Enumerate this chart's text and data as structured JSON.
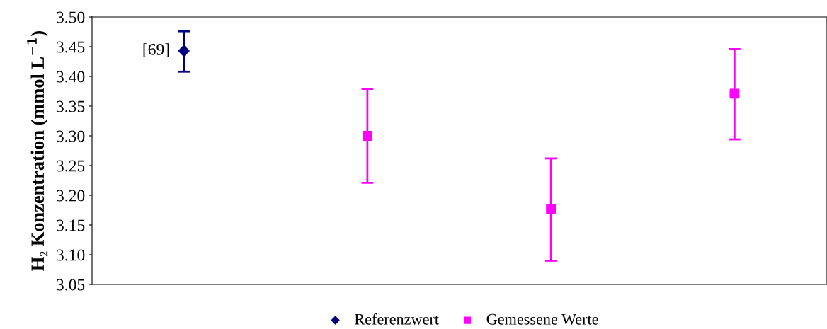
{
  "chart_data": {
    "type": "scatter",
    "ylabel": "H₂ Konzentration (mmol L$^{−1}$)",
    "categories": [
      null,
      null,
      null,
      null
    ],
    "series": [
      {
        "name": "Referenzwert",
        "color": "#000080",
        "marker": "diamond",
        "values": [
          3.443,
          null,
          null,
          null
        ],
        "errors": [
          [
            3.408,
            3.476
          ],
          null,
          null,
          null
        ]
      },
      {
        "name": "Gemessene Werte",
        "color": "#ff00ff",
        "marker": "square",
        "values": [
          null,
          3.3,
          3.177,
          3.371
        ],
        "errors": [
          null,
          [
            3.221,
            3.379
          ],
          [
            3.09,
            3.262
          ],
          [
            3.294,
            3.446
          ]
        ]
      }
    ],
    "annotations": [
      "[69]"
    ],
    "ylim": [
      3.05,
      3.5
    ],
    "yticks": [
      {
        "value": 3.05,
        "label": "3.05"
      },
      {
        "value": 3.1,
        "label": "3.10"
      },
      {
        "value": 3.15,
        "label": "3.15"
      },
      {
        "value": 3.2,
        "label": "3.20"
      },
      {
        "value": 3.25,
        "label": "3.25"
      },
      {
        "value": 3.3,
        "label": "3.30"
      },
      {
        "value": 3.35,
        "label": "3.35"
      },
      {
        "value": 3.4,
        "label": "3.40"
      },
      {
        "value": 3.45,
        "label": "3.45"
      },
      {
        "value": 3.5,
        "label": "3.50"
      }
    ],
    "grid": false,
    "legend": "bottom",
    "tick_labels": "y"
  }
}
